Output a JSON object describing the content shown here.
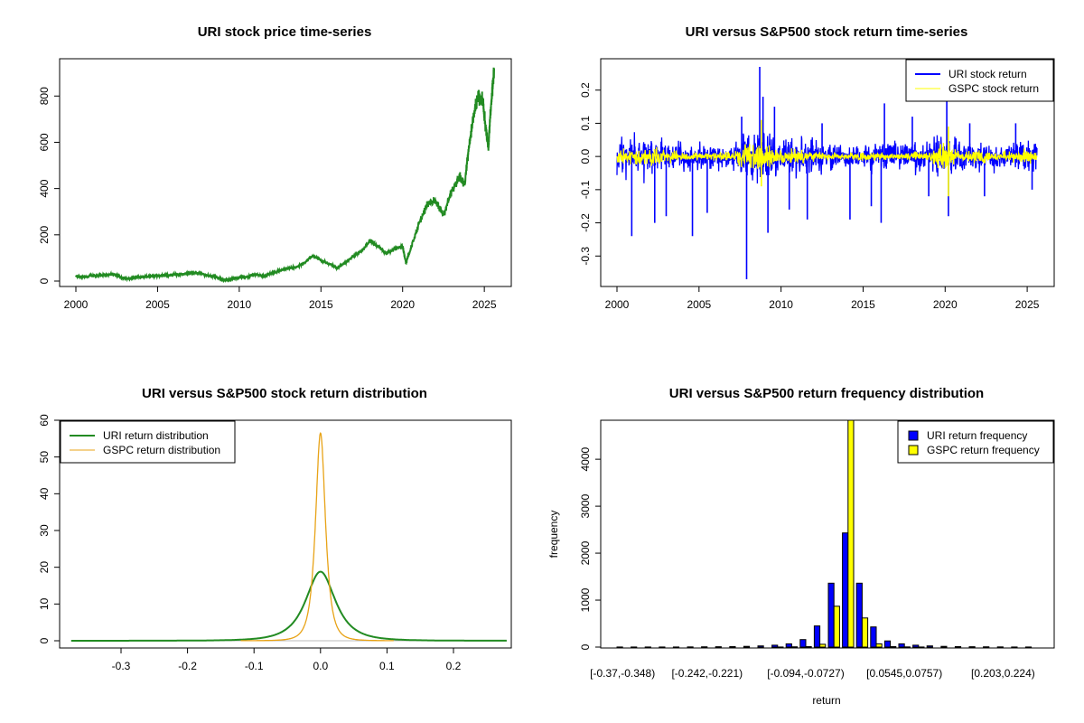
{
  "chart_data": [
    {
      "type": "line",
      "title": "URI stock price time-series",
      "xlabel": "",
      "ylabel": "",
      "xlim": [
        2000,
        2025.6
      ],
      "ylim": [
        0,
        930
      ],
      "xticks": [
        2000,
        2005,
        2010,
        2015,
        2020,
        2025
      ],
      "yticks": [
        0,
        200,
        400,
        600,
        800
      ],
      "colors": {
        "line": "#228B22"
      },
      "series": [
        {
          "name": "",
          "points": [
            [
              2000.0,
              20
            ],
            [
              2000.5,
              18
            ],
            [
              2001.0,
              22
            ],
            [
              2001.5,
              25
            ],
            [
              2002.0,
              27
            ],
            [
              2002.4,
              30
            ],
            [
              2002.8,
              15
            ],
            [
              2003.2,
              10
            ],
            [
              2003.6,
              15
            ],
            [
              2004.0,
              18
            ],
            [
              2004.5,
              20
            ],
            [
              2005.0,
              22
            ],
            [
              2005.5,
              25
            ],
            [
              2006.0,
              28
            ],
            [
              2006.5,
              30
            ],
            [
              2007.0,
              33
            ],
            [
              2007.5,
              35
            ],
            [
              2008.0,
              25
            ],
            [
              2008.5,
              20
            ],
            [
              2009.0,
              5
            ],
            [
              2009.5,
              8
            ],
            [
              2010.0,
              15
            ],
            [
              2010.5,
              18
            ],
            [
              2011.0,
              30
            ],
            [
              2011.5,
              20
            ],
            [
              2012.0,
              35
            ],
            [
              2012.5,
              45
            ],
            [
              2013.0,
              55
            ],
            [
              2013.5,
              60
            ],
            [
              2014.0,
              80
            ],
            [
              2014.5,
              110
            ],
            [
              2015.0,
              90
            ],
            [
              2015.5,
              75
            ],
            [
              2016.0,
              55
            ],
            [
              2016.5,
              80
            ],
            [
              2017.0,
              110
            ],
            [
              2017.5,
              130
            ],
            [
              2018.0,
              175
            ],
            [
              2018.5,
              150
            ],
            [
              2019.0,
              120
            ],
            [
              2019.5,
              140
            ],
            [
              2020.0,
              150
            ],
            [
              2020.2,
              80
            ],
            [
              2020.5,
              140
            ],
            [
              2021.0,
              250
            ],
            [
              2021.5,
              330
            ],
            [
              2022.0,
              350
            ],
            [
              2022.5,
              280
            ],
            [
              2023.0,
              390
            ],
            [
              2023.5,
              450
            ],
            [
              2023.8,
              420
            ],
            [
              2024.0,
              550
            ],
            [
              2024.3,
              700
            ],
            [
              2024.6,
              800
            ],
            [
              2024.9,
              780
            ],
            [
              2025.1,
              650
            ],
            [
              2025.25,
              580
            ],
            [
              2025.4,
              750
            ],
            [
              2025.6,
              920
            ]
          ]
        }
      ]
    },
    {
      "type": "line",
      "title": "URI versus S&P500 stock return time-series",
      "xlabel": "",
      "ylabel": "",
      "xlim": [
        2000,
        2025.6
      ],
      "ylim": [
        -0.37,
        0.27
      ],
      "xticks": [
        2000,
        2005,
        2010,
        2015,
        2020,
        2025
      ],
      "yticks": [
        -0.3,
        -0.2,
        -0.1,
        0.0,
        0.1,
        0.2
      ],
      "ytick_labels": [
        "-0.3",
        "-0.2",
        "-0.1",
        "0.0",
        "0.1",
        "0.2"
      ],
      "legend": "top-right",
      "series": [
        {
          "name": "URI stock return",
          "color": "#0000FF",
          "band": [
            [
              2000,
              0.06
            ],
            [
              2001,
              0.07
            ],
            [
              2002,
              0.06
            ],
            [
              2003,
              0.05
            ],
            [
              2004,
              0.04
            ],
            [
              2005,
              0.04
            ],
            [
              2006,
              0.035
            ],
            [
              2007,
              0.04
            ],
            [
              2008,
              0.07
            ],
            [
              2009,
              0.08
            ],
            [
              2010,
              0.06
            ],
            [
              2011,
              0.06
            ],
            [
              2012,
              0.05
            ],
            [
              2013,
              0.04
            ],
            [
              2014,
              0.035
            ],
            [
              2015,
              0.04
            ],
            [
              2016,
              0.05
            ],
            [
              2017,
              0.04
            ],
            [
              2018,
              0.04
            ],
            [
              2019,
              0.04
            ],
            [
              2020,
              0.08
            ],
            [
              2021,
              0.05
            ],
            [
              2022,
              0.05
            ],
            [
              2023,
              0.04
            ],
            [
              2024,
              0.04
            ],
            [
              2025,
              0.05
            ],
            [
              2025.6,
              0.05
            ]
          ],
          "spikes": [
            [
              2000.9,
              -0.24
            ],
            [
              2002.3,
              -0.2
            ],
            [
              2003.0,
              -0.18
            ],
            [
              2004.6,
              -0.24
            ],
            [
              2005.5,
              -0.17
            ],
            [
              2007.6,
              0.12
            ],
            [
              2007.9,
              -0.37
            ],
            [
              2008.7,
              0.27
            ],
            [
              2008.9,
              0.18
            ],
            [
              2009.2,
              -0.23
            ],
            [
              2009.6,
              0.15
            ],
            [
              2010.5,
              -0.16
            ],
            [
              2011.6,
              -0.19
            ],
            [
              2012.5,
              0.1
            ],
            [
              2014.2,
              -0.19
            ],
            [
              2015.5,
              -0.15
            ],
            [
              2016.1,
              -0.2
            ],
            [
              2016.3,
              0.16
            ],
            [
              2018.0,
              0.12
            ],
            [
              2019.0,
              -0.12
            ],
            [
              2020.1,
              0.19
            ],
            [
              2020.2,
              -0.18
            ],
            [
              2021.5,
              0.1
            ],
            [
              2022.4,
              -0.12
            ],
            [
              2024.3,
              0.1
            ],
            [
              2025.3,
              -0.1
            ]
          ]
        },
        {
          "name": "GSPC stock return",
          "color": "#FFFF00",
          "band": [
            [
              2000,
              0.02
            ],
            [
              2001,
              0.025
            ],
            [
              2002,
              0.03
            ],
            [
              2003,
              0.02
            ],
            [
              2004,
              0.012
            ],
            [
              2005,
              0.01
            ],
            [
              2006,
              0.01
            ],
            [
              2007,
              0.015
            ],
            [
              2008,
              0.05
            ],
            [
              2009,
              0.035
            ],
            [
              2010,
              0.018
            ],
            [
              2011,
              0.025
            ],
            [
              2012,
              0.012
            ],
            [
              2013,
              0.01
            ],
            [
              2014,
              0.01
            ],
            [
              2015,
              0.015
            ],
            [
              2016,
              0.012
            ],
            [
              2017,
              0.006
            ],
            [
              2018,
              0.015
            ],
            [
              2019,
              0.012
            ],
            [
              2020,
              0.055
            ],
            [
              2021,
              0.012
            ],
            [
              2022,
              0.025
            ],
            [
              2023,
              0.015
            ],
            [
              2024,
              0.012
            ],
            [
              2025,
              0.03
            ],
            [
              2025.6,
              0.012
            ]
          ],
          "spikes": [
            [
              2008.8,
              0.11
            ],
            [
              2008.8,
              -0.09
            ],
            [
              2020.2,
              0.09
            ],
            [
              2020.2,
              -0.12
            ]
          ]
        }
      ]
    },
    {
      "type": "line",
      "title": "URI versus S&P500 stock return distribution",
      "xlabel": "",
      "ylabel": "",
      "xlim": [
        -0.375,
        0.28
      ],
      "ylim": [
        0,
        60
      ],
      "xticks": [
        -0.3,
        -0.2,
        -0.1,
        0.0,
        0.1,
        0.2
      ],
      "xtick_labels": [
        "-0.3",
        "-0.2",
        "-0.1",
        "0.0",
        "0.1",
        "0.2"
      ],
      "yticks": [
        0,
        10,
        20,
        30,
        40,
        50,
        60
      ],
      "legend": "top-left",
      "series": [
        {
          "name": "URI return distribution",
          "color": "#228B22",
          "peak": 18.8,
          "scale": 0.021,
          "xmin": -0.375,
          "xmax": 0.28
        },
        {
          "name": "GSPC return distribution",
          "color": "#E8A317",
          "peak": 56.5,
          "scale": 0.007,
          "xmin": -0.12,
          "xmax": 0.11
        }
      ]
    },
    {
      "type": "bar",
      "title": "URI versus S&P500 return frequency distribution",
      "xlabel": "return",
      "ylabel": "frequency",
      "ylim": [
        0,
        4830
      ],
      "yticks": [
        0,
        1000,
        2000,
        3000,
        4000
      ],
      "tick_labels": [
        {
          "bin": 0,
          "label": "[-0.37,-0.348)"
        },
        {
          "bin": 6,
          "label": "[-0.242,-0.221)"
        },
        {
          "bin": 13,
          "label": "[-0.094,-0.0727)"
        },
        {
          "bin": 20,
          "label": "[0.0545,0.0757)"
        },
        {
          "bin": 27,
          "label": "[0.203,0.224)"
        }
      ],
      "legend": "top-right",
      "series": [
        {
          "name": "URI return frequency",
          "color": "#0000FF",
          "values": [
            1,
            1,
            1,
            2,
            2,
            3,
            5,
            8,
            10,
            15,
            25,
            40,
            70,
            160,
            450,
            1360,
            2430,
            1360,
            430,
            130,
            70,
            40,
            25,
            15,
            10,
            8,
            5,
            3,
            2,
            1
          ]
        },
        {
          "name": "GSPC return frequency",
          "color": "#FFFF00",
          "values": [
            0,
            0,
            0,
            0,
            0,
            0,
            0,
            0,
            0,
            0,
            0,
            2,
            5,
            10,
            60,
            870,
            4830,
            620,
            70,
            10,
            3,
            1,
            0,
            0,
            0,
            0,
            0,
            0,
            0,
            0
          ]
        }
      ]
    }
  ]
}
